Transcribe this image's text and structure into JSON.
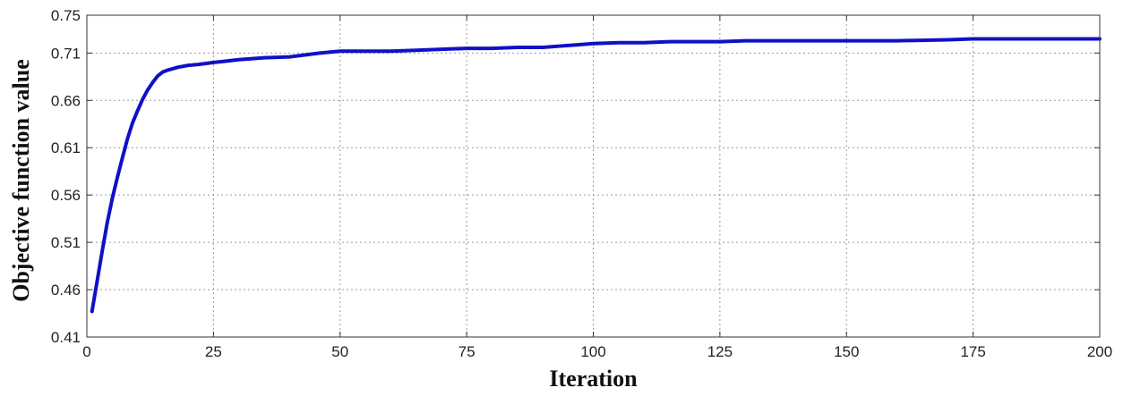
{
  "chart_data": {
    "type": "line",
    "title": "",
    "xlabel": "Iteration",
    "ylabel": "Objective function value",
    "xlim": [
      0,
      200
    ],
    "ylim": [
      0.41,
      0.75
    ],
    "xticks": [
      0,
      25,
      50,
      75,
      100,
      125,
      150,
      175,
      200
    ],
    "yticks": [
      0.41,
      0.46,
      0.51,
      0.56,
      0.61,
      0.66,
      0.71,
      0.75
    ],
    "ytick_labels": [
      "0.41",
      "0.46",
      "0.51",
      "0.56",
      "0.61",
      "0.66",
      "0.71",
      "0.75"
    ],
    "grid": true,
    "series": [
      {
        "color": "#1010c8",
        "x": [
          1,
          2,
          3,
          4,
          5,
          6,
          7,
          8,
          9,
          10,
          11,
          12,
          13,
          14,
          15,
          16,
          18,
          20,
          22,
          25,
          30,
          35,
          40,
          43,
          46,
          50,
          55,
          60,
          65,
          70,
          75,
          80,
          85,
          90,
          95,
          100,
          105,
          110,
          115,
          120,
          125,
          130,
          140,
          150,
          160,
          170,
          175,
          180,
          190,
          200
        ],
        "y": [
          0.437,
          0.468,
          0.5,
          0.53,
          0.556,
          0.578,
          0.599,
          0.619,
          0.636,
          0.649,
          0.661,
          0.671,
          0.679,
          0.686,
          0.69,
          0.692,
          0.695,
          0.697,
          0.698,
          0.7,
          0.703,
          0.705,
          0.706,
          0.708,
          0.71,
          0.712,
          0.712,
          0.712,
          0.713,
          0.714,
          0.715,
          0.715,
          0.716,
          0.716,
          0.718,
          0.72,
          0.721,
          0.721,
          0.722,
          0.722,
          0.722,
          0.723,
          0.723,
          0.723,
          0.723,
          0.724,
          0.725,
          0.725,
          0.725,
          0.725
        ]
      }
    ]
  }
}
